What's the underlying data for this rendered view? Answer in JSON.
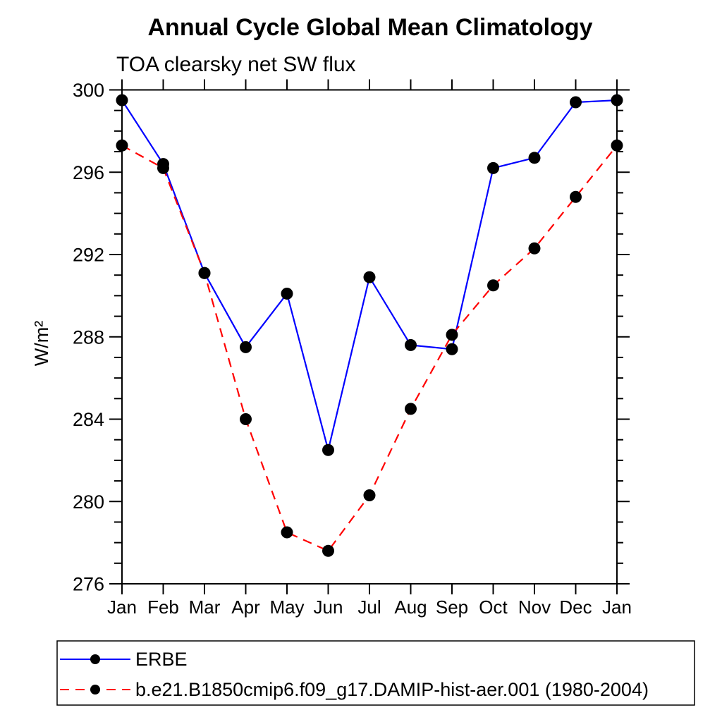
{
  "chart_data": {
    "type": "line",
    "title": "Annual Cycle Global Mean Climatology",
    "subtitle": "TOA clearsky net SW flux",
    "ylabel": "W/m²",
    "xlabel": "",
    "categories": [
      "Jan",
      "Feb",
      "Mar",
      "Apr",
      "May",
      "Jun",
      "Jul",
      "Aug",
      "Sep",
      "Oct",
      "Nov",
      "Dec",
      "Jan"
    ],
    "ylim": [
      276,
      300
    ],
    "ytick_major": [
      276,
      280,
      284,
      288,
      292,
      296,
      300
    ],
    "ytick_minor_step": 1,
    "grid": "off",
    "legend_position": "bottom",
    "marker": "filled-circle",
    "marker_color": "#000000",
    "series": [
      {
        "name": "ERBE",
        "color": "#0000ff",
        "line_style": "solid",
        "values": [
          299.5,
          296.4,
          291.1,
          287.5,
          290.1,
          282.5,
          290.9,
          287.6,
          287.4,
          296.2,
          296.7,
          299.4,
          299.5
        ]
      },
      {
        "name": "b.e21.B1850cmip6.f09_g17.DAMIP-hist-aer.001 (1980-2004)",
        "color": "#ff0000",
        "line_style": "dashed",
        "values": [
          297.3,
          296.2,
          291.1,
          284.0,
          278.5,
          277.6,
          280.3,
          284.5,
          288.1,
          290.5,
          292.3,
          294.8,
          297.3
        ]
      }
    ]
  }
}
